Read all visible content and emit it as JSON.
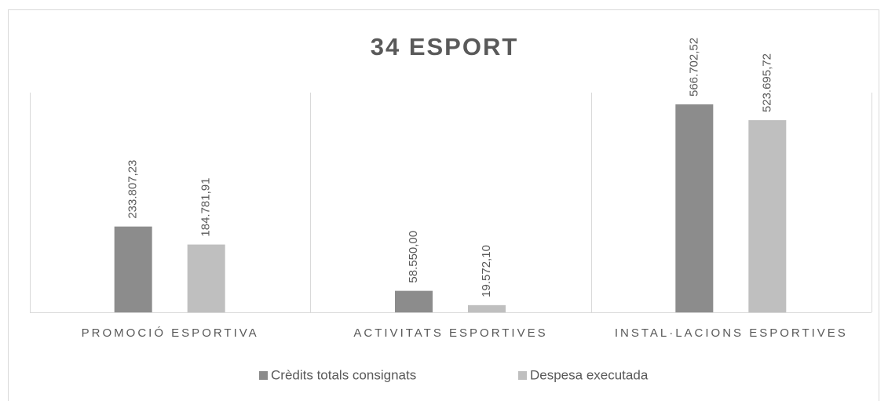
{
  "chart_data": {
    "type": "bar",
    "title": "34 ESPORT",
    "categories": [
      "PROMOCIÓ ESPORTIVA",
      "ACTIVITATS ESPORTIVES",
      "INSTAL·LACIONS ESPORTIVES"
    ],
    "series": [
      {
        "name": "Crèdits totals consignats",
        "color": "#8c8c8c",
        "values": [
          233807.23,
          58550.0,
          566702.52
        ],
        "value_labels": [
          "233.807,23",
          "58.550,00",
          "566.702,52"
        ]
      },
      {
        "name": "Despesa executada",
        "color": "#bfbfbf",
        "values": [
          184781.91,
          19572.1,
          523695.72
        ],
        "value_labels": [
          "184.781,91",
          "19.572,10",
          "523.695,72"
        ]
      }
    ],
    "grid": false
  }
}
